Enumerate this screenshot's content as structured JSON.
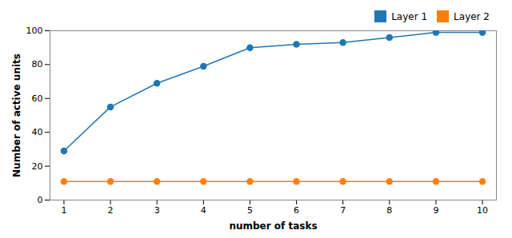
{
  "chart_data": {
    "type": "line",
    "x": [
      1,
      2,
      3,
      4,
      5,
      6,
      7,
      8,
      9,
      10
    ],
    "series": [
      {
        "name": "Layer 1",
        "color": "#1f77b4",
        "values": [
          29,
          55,
          69,
          79,
          90,
          92,
          93,
          96,
          99,
          99
        ]
      },
      {
        "name": "Layer 2",
        "color": "#ff7f0e",
        "values": [
          11,
          11,
          11,
          11,
          11,
          11,
          11,
          11,
          11,
          11
        ]
      }
    ],
    "xlabel": "number of tasks",
    "ylabel": "Number of active units",
    "xlim": [
      0.7,
      10.3
    ],
    "ylim": [
      0,
      100
    ],
    "xticks": [
      1,
      2,
      3,
      4,
      5,
      6,
      7,
      8,
      9,
      10
    ],
    "yticks": [
      0,
      20,
      40,
      60,
      80,
      100
    ],
    "legend": "upper right",
    "marker": "circle",
    "grid": false
  }
}
